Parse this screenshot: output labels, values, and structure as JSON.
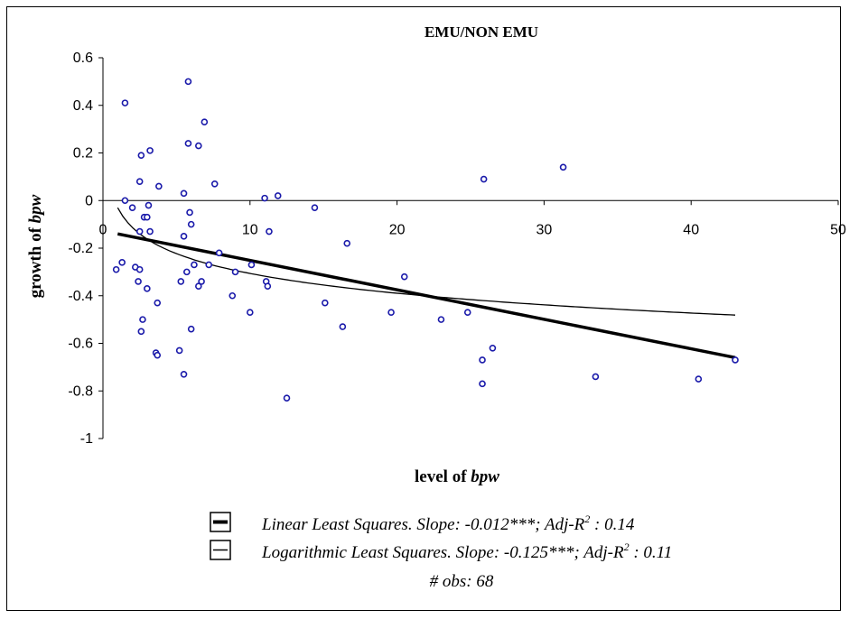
{
  "chart_data": {
    "type": "scatter",
    "title": "EMU/NON EMU",
    "xlabel": {
      "prefix": "level  of ",
      "var": "bpw"
    },
    "ylabel": {
      "prefix": "growth of ",
      "var": "bpw"
    },
    "xlim": [
      0,
      50
    ],
    "ylim": [
      -1,
      0.6
    ],
    "xticks": [
      0,
      10,
      20,
      30,
      40,
      50
    ],
    "xtick_labels": [
      "0",
      "10",
      "20",
      "30",
      "40",
      "50"
    ],
    "yticks": [
      0.6,
      0.4,
      0.2,
      0,
      -0.2,
      -0.4,
      -0.6,
      -0.8,
      -1
    ],
    "ytick_labels": [
      "0.6",
      "0.4",
      "0.2",
      "0",
      "-0.2",
      "-0.4",
      "-0.6",
      "-0.8",
      "-1"
    ],
    "grid": false,
    "point_color": "#1a1aaa",
    "points": [
      [
        1.5,
        0.41
      ],
      [
        2.6,
        0.19
      ],
      [
        3.2,
        0.21
      ],
      [
        2.5,
        0.08
      ],
      [
        3.8,
        0.06
      ],
      [
        5.8,
        0.5
      ],
      [
        5.8,
        0.24
      ],
      [
        6.5,
        0.23
      ],
      [
        6.9,
        0.33
      ],
      [
        7.6,
        0.07
      ],
      [
        5.5,
        0.03
      ],
      [
        11,
        0.01
      ],
      [
        11.9,
        0.02
      ],
      [
        25.9,
        0.09
      ],
      [
        31.3,
        0.14
      ],
      [
        1.5,
        0
      ],
      [
        2,
        -0.03
      ],
      [
        2.8,
        -0.07
      ],
      [
        3.1,
        -0.02
      ],
      [
        3,
        -0.07
      ],
      [
        5.9,
        -0.05
      ],
      [
        6,
        -0.1
      ],
      [
        14.4,
        -0.03
      ],
      [
        3.2,
        -0.13
      ],
      [
        2.5,
        -0.13
      ],
      [
        5.5,
        -0.15
      ],
      [
        11.3,
        -0.13
      ],
      [
        7.9,
        -0.22
      ],
      [
        16.6,
        -0.18
      ],
      [
        0.9,
        -0.29
      ],
      [
        1.3,
        -0.26
      ],
      [
        2.2,
        -0.28
      ],
      [
        2.5,
        -0.29
      ],
      [
        2.4,
        -0.34
      ],
      [
        3,
        -0.37
      ],
      [
        6.2,
        -0.27
      ],
      [
        5.7,
        -0.3
      ],
      [
        5.3,
        -0.34
      ],
      [
        6.7,
        -0.34
      ],
      [
        6.5,
        -0.36
      ],
      [
        7.2,
        -0.27
      ],
      [
        9,
        -0.3
      ],
      [
        10.1,
        -0.27
      ],
      [
        11.1,
        -0.34
      ],
      [
        11.2,
        -0.36
      ],
      [
        3.7,
        -0.43
      ],
      [
        8.8,
        -0.4
      ],
      [
        15.1,
        -0.43
      ],
      [
        20.5,
        -0.32
      ],
      [
        10,
        -0.47
      ],
      [
        2.6,
        -0.55
      ],
      [
        2.7,
        -0.5
      ],
      [
        6,
        -0.54
      ],
      [
        16.3,
        -0.53
      ],
      [
        19.6,
        -0.47
      ],
      [
        23,
        -0.5
      ],
      [
        24.8,
        -0.47
      ],
      [
        26.5,
        -0.62
      ],
      [
        3.6,
        -0.64
      ],
      [
        3.7,
        -0.65
      ],
      [
        5.2,
        -0.63
      ],
      [
        5.5,
        -0.73
      ],
      [
        12.5,
        -0.83
      ],
      [
        25.8,
        -0.67
      ],
      [
        25.8,
        -0.77
      ],
      [
        33.5,
        -0.74
      ],
      [
        40.5,
        -0.75
      ],
      [
        43,
        -0.67
      ]
    ],
    "trendlines": [
      {
        "name": "Linear Least Squares",
        "type": "linear",
        "x_range": [
          1,
          43
        ],
        "y_at_start": -0.14,
        "y_at_end": -0.66
      },
      {
        "name": "Logarithmic Least Squares",
        "type": "logarithmic",
        "x_range": [
          1,
          43
        ],
        "intercept": -0.03,
        "slope": -0.12
      }
    ],
    "legend": [
      {
        "style": "thick",
        "label": "Linear Least Squares. Slope: -0.012***; Adj-R",
        "sup": "2",
        "tail": " : 0.14"
      },
      {
        "style": "thin",
        "label": "Logarithmic Least Squares. Slope: -0.125***; Adj-R",
        "sup": "2",
        "tail": " : 0.11"
      }
    ],
    "note": "# obs: 68"
  }
}
